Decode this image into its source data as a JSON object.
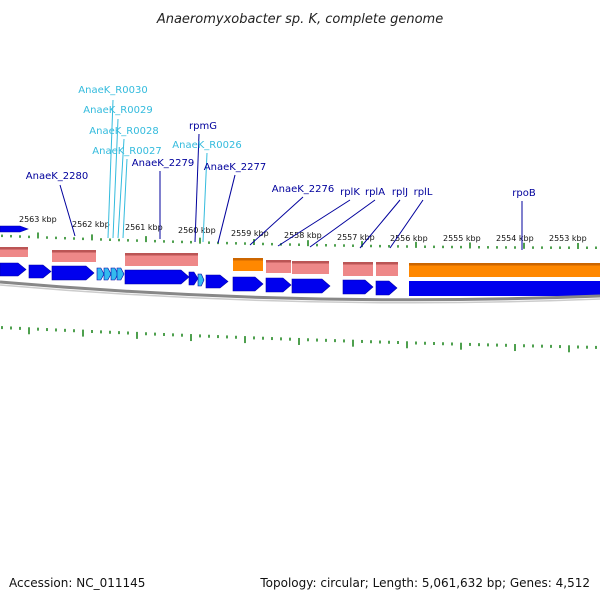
{
  "title": "Anaeromyxobacter sp. K, complete genome",
  "footer": {
    "accession": "Accession: NC_011145",
    "summary": "Topology: circular; Length: 5,061,632 bp; Genes: 4,512"
  },
  "colors": {
    "cds": "#0000ee",
    "cds_dark": "#0000aa",
    "rna": "#33bbee",
    "pink": "#ee8888",
    "pink_dark": "#bb5555",
    "orange": "#ff8800",
    "orange_dark": "#cc6600",
    "tick": "#228822",
    "label_blue": "#00009c",
    "label_cyan": "#33bbdd",
    "backbone": "#888888"
  },
  "kbp_ticks": [
    {
      "label": "2563 kbp"
    },
    {
      "label": "2562 kbp"
    },
    {
      "label": "2561 kbp"
    },
    {
      "label": "2560 kbp"
    },
    {
      "label": "2559 kbp"
    },
    {
      "label": "2558 kbp"
    },
    {
      "label": "2557 kbp"
    },
    {
      "label": "2556 kbp"
    },
    {
      "label": "2555 kbp"
    },
    {
      "label": "2554 kbp"
    },
    {
      "label": "2553 kbp"
    }
  ],
  "gene_labels": [
    {
      "name": "AnaeK_R0030",
      "kind": "rna"
    },
    {
      "name": "AnaeK_R0029",
      "kind": "rna"
    },
    {
      "name": "AnaeK_R0028",
      "kind": "rna"
    },
    {
      "name": "AnaeK_R0027",
      "kind": "rna"
    },
    {
      "name": "AnaeK_R0026",
      "kind": "rna"
    },
    {
      "name": "rpmG",
      "kind": "cds"
    },
    {
      "name": "AnaeK_2280",
      "kind": "cds"
    },
    {
      "name": "AnaeK_2279",
      "kind": "cds"
    },
    {
      "name": "AnaeK_2277",
      "kind": "cds"
    },
    {
      "name": "AnaeK_2276",
      "kind": "cds"
    },
    {
      "name": "rplK",
      "kind": "cds"
    },
    {
      "name": "rplA",
      "kind": "cds"
    },
    {
      "name": "rplJ",
      "kind": "cds"
    },
    {
      "name": "rplL",
      "kind": "cds"
    },
    {
      "name": "rpoB",
      "kind": "cds"
    }
  ]
}
